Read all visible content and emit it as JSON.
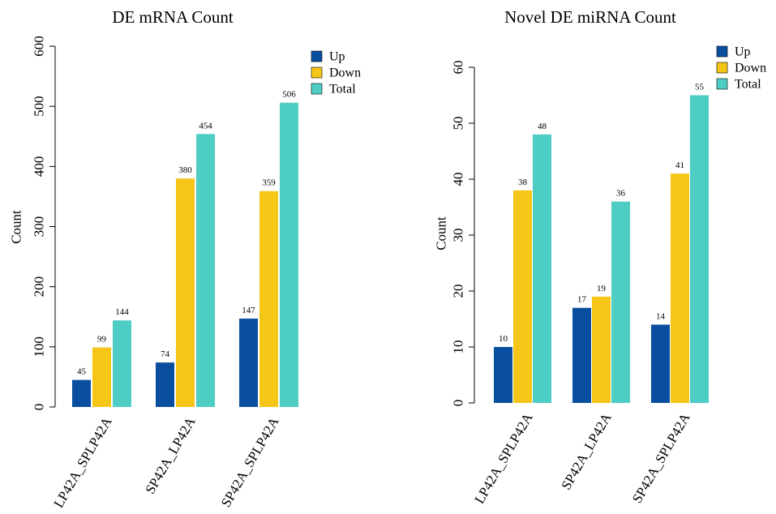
{
  "colors": {
    "up": "#0a4f9f",
    "down": "#f5c518",
    "total": "#4ecdc4",
    "axis": "#000000"
  },
  "chart_data": [
    {
      "type": "bar",
      "title": "DE mRNA Count",
      "ylabel": "Count",
      "xlabel": "",
      "ylim": [
        0,
        600
      ],
      "yticks": [
        0,
        100,
        200,
        300,
        400,
        500,
        600
      ],
      "categories": [
        "LP42A_SPLP42A",
        "SP42A_LP42A",
        "SP42A_SPLP42A"
      ],
      "series": [
        {
          "name": "Up",
          "color_key": "up",
          "values": [
            45,
            74,
            147
          ]
        },
        {
          "name": "Down",
          "color_key": "down",
          "values": [
            99,
            380,
            359
          ]
        },
        {
          "name": "Total",
          "color_key": "total",
          "values": [
            144,
            454,
            506
          ]
        }
      ],
      "legend_position": "top-right",
      "grid": false
    },
    {
      "type": "bar",
      "title": "Novel DE miRNA Count",
      "ylabel": "Count",
      "xlabel": "",
      "ylim": [
        0,
        60
      ],
      "yticks": [
        0,
        10,
        20,
        30,
        40,
        50,
        60
      ],
      "categories": [
        "LP42A_SPLP42A",
        "SP42A_LP42A",
        "SP42A_SPLP42A"
      ],
      "series": [
        {
          "name": "Up",
          "color_key": "up",
          "values": [
            10,
            17,
            14
          ]
        },
        {
          "name": "Down",
          "color_key": "down",
          "values": [
            38,
            19,
            41
          ]
        },
        {
          "name": "Total",
          "color_key": "total",
          "values": [
            48,
            36,
            55
          ]
        }
      ],
      "legend_position": "top-right",
      "grid": false
    }
  ]
}
